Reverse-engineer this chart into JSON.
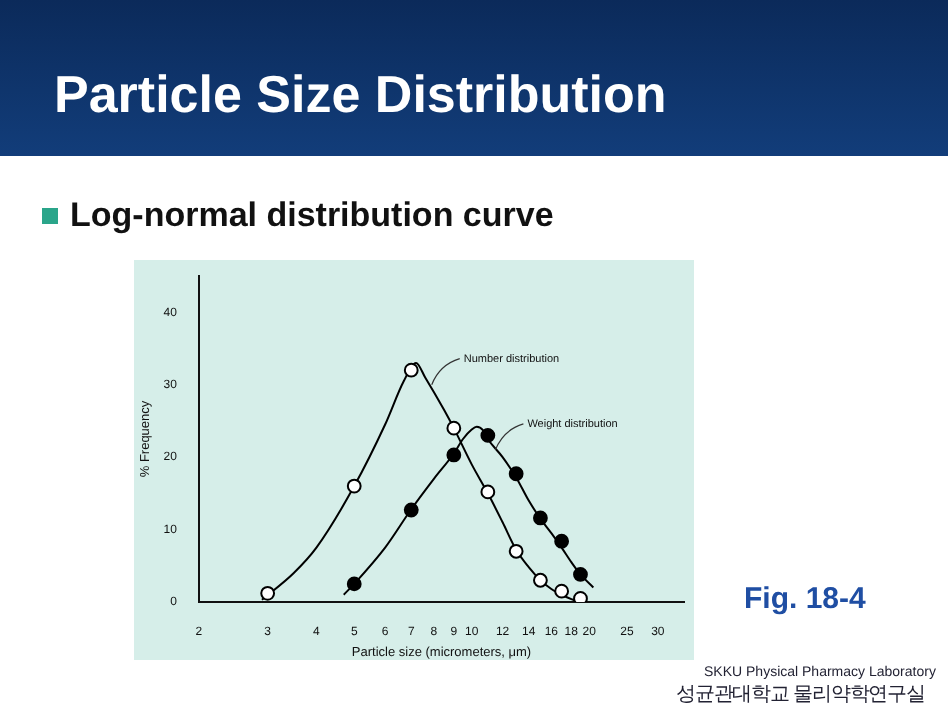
{
  "chart_data": {
    "type": "scatter",
    "title": "Particle Size Distribution",
    "subtitle": "Log-normal distribution curve",
    "xlabel": "Particle size (micrometers, μm)",
    "ylabel": "% Frequency",
    "log": "x",
    "grid": false,
    "legend": false,
    "marker": "circle",
    "xlim": [
      2,
      35
    ],
    "xticks": [
      2,
      3,
      4,
      5,
      6,
      7,
      8,
      9,
      10,
      12,
      14,
      16,
      18,
      20,
      25,
      30
    ],
    "ylim": [
      0,
      45
    ],
    "yticks": [
      0,
      10,
      20,
      30,
      40
    ],
    "series": [
      {
        "type": "scatter",
        "color": "#000000",
        "x": [
          3,
          5,
          7,
          9,
          11,
          13,
          15,
          17,
          19
        ],
        "values": [
          1.2,
          16,
          32,
          24,
          15.2,
          7,
          3,
          1.5,
          0.5
        ]
      },
      {
        "type": "scatter",
        "color": "#000000",
        "x": [
          5,
          7,
          9,
          11,
          13,
          15,
          17,
          19
        ],
        "values": [
          2.5,
          12.7,
          20.3,
          23,
          17.7,
          11.6,
          8.4,
          3.8
        ]
      },
      {
        "type": "line",
        "color": "#000000",
        "marker": "none",
        "x": [
          2.9,
          3.5,
          4,
          5,
          6,
          6.7,
          7.2,
          7.6,
          8.5,
          9,
          10,
          11,
          12,
          13,
          14,
          15,
          16,
          17,
          18,
          19
        ],
        "values": [
          0.3,
          4,
          7.5,
          16,
          24.5,
          30.5,
          33,
          31,
          26.5,
          24,
          19,
          15,
          11,
          7.2,
          4.8,
          3,
          1.8,
          1,
          0.4,
          0
        ]
      },
      {
        "type": "line",
        "color": "#000000",
        "marker": "none",
        "x": [
          4.7,
          5,
          6,
          7,
          8,
          9,
          9.5,
          10,
          10.3,
          10.7,
          11,
          12,
          13,
          14,
          15,
          16,
          17,
          18,
          19,
          20.5
        ],
        "values": [
          1,
          2.5,
          7.5,
          12.8,
          17,
          20.5,
          22.5,
          23.8,
          24.2,
          23.7,
          22.5,
          20,
          17.2,
          14,
          11.5,
          9.5,
          7.5,
          5.5,
          3.8,
          2
        ]
      }
    ],
    "annotations": [
      {
        "text": "Number distribution",
        "x": 7.9,
        "y": 30
      },
      {
        "text": "Weight distribution",
        "x": 11.5,
        "y": 21
      },
      "Fig. 18-4",
      "SKKU Physical Pharmacy Laboratory",
      "성균관대학교 물리약학연구실"
    ]
  }
}
